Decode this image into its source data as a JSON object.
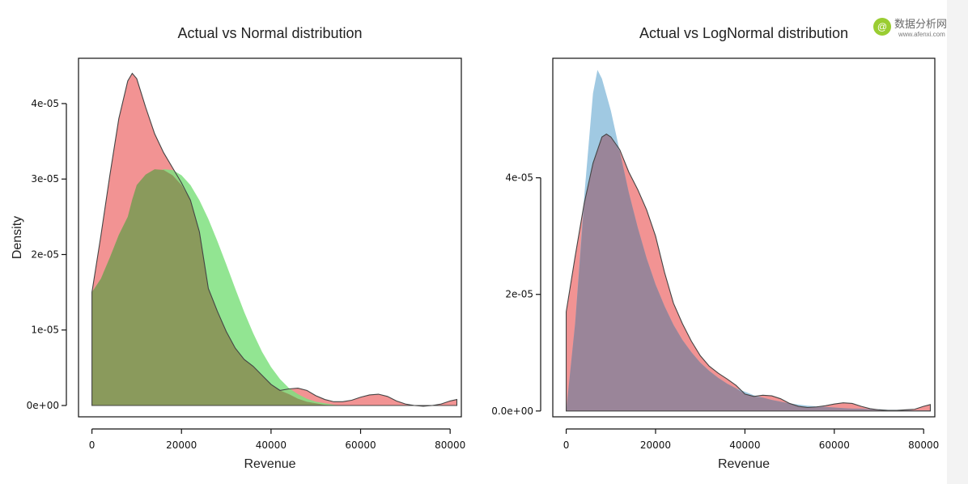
{
  "watermark": {
    "cn": "数据分析网",
    "en": "www.afenxi.com"
  },
  "chart_data": [
    {
      "type": "area",
      "title": "Actual vs Normal distribution",
      "xlabel": "Revenue",
      "ylabel": "Density",
      "xlim": [
        -3000,
        82500
      ],
      "ylim": [
        -1.5e-06,
        4.6e-05
      ],
      "x_ticks": [
        0,
        20000,
        40000,
        60000,
        80000
      ],
      "x_tick_labels": [
        "0",
        "20000",
        "40000",
        "60000",
        "80000"
      ],
      "y_ticks": [
        0,
        1e-05,
        2e-05,
        3e-05,
        4e-05
      ],
      "y_tick_labels": [
        "0e+00",
        "1e-05",
        "2e-05",
        "3e-05",
        "4e-05"
      ],
      "grid": false,
      "series": [
        {
          "name": "Actual",
          "color": "#f08080",
          "points": [
            [
              0,
              1.5e-05
            ],
            [
              2000,
              2.25e-05
            ],
            [
              4000,
              3.05e-05
            ],
            [
              6000,
              3.8e-05
            ],
            [
              8000,
              4.3e-05
            ],
            [
              9000,
              4.4e-05
            ],
            [
              10000,
              4.33e-05
            ],
            [
              12000,
              3.95e-05
            ],
            [
              14000,
              3.6e-05
            ],
            [
              16000,
              3.35e-05
            ],
            [
              18000,
              3.15e-05
            ],
            [
              20000,
              2.95e-05
            ],
            [
              22000,
              2.72e-05
            ],
            [
              24000,
              2.3e-05
            ],
            [
              26000,
              1.55e-05
            ],
            [
              28000,
              1.25e-05
            ],
            [
              30000,
              9.8e-06
            ],
            [
              32000,
              7.6e-06
            ],
            [
              34000,
              6.1e-06
            ],
            [
              36000,
              5.2e-06
            ],
            [
              38000,
              4e-06
            ],
            [
              40000,
              2.8e-06
            ],
            [
              42000,
              2e-06
            ],
            [
              44000,
              2.2e-06
            ],
            [
              46000,
              2.3e-06
            ],
            [
              48000,
              2e-06
            ],
            [
              50000,
              1.3e-06
            ],
            [
              52000,
              8e-07
            ],
            [
              54000,
              5e-07
            ],
            [
              56000,
              5e-07
            ],
            [
              58000,
              7e-07
            ],
            [
              60000,
              1.1e-06
            ],
            [
              62000,
              1.4e-06
            ],
            [
              64000,
              1.5e-06
            ],
            [
              66000,
              1.2e-06
            ],
            [
              68000,
              6e-07
            ],
            [
              70000,
              2e-07
            ],
            [
              72000,
              0
            ],
            [
              74000,
              -1e-07
            ],
            [
              76000,
              0
            ],
            [
              78000,
              2e-07
            ],
            [
              80000,
              6e-07
            ],
            [
              81500,
              8e-07
            ]
          ]
        },
        {
          "name": "Normal",
          "color": "#7fe07f",
          "points": [
            [
              0,
              1.5e-05
            ],
            [
              2000,
              1.68e-05
            ],
            [
              4000,
              1.96e-05
            ],
            [
              6000,
              2.26e-05
            ],
            [
              8000,
              2.5e-05
            ],
            [
              10000,
              2.73e-05
            ],
            [
              12000,
              2.92e-05
            ],
            [
              14000,
              3.06e-05
            ],
            [
              16000,
              3.13e-05
            ],
            [
              18000,
              3.12e-05
            ],
            [
              20000,
              3.05e-05
            ],
            [
              22000,
              2.92e-05
            ],
            [
              24000,
              2.72e-05
            ],
            [
              26000,
              2.47e-05
            ],
            [
              28000,
              2.18e-05
            ],
            [
              30000,
              1.87e-05
            ],
            [
              32000,
              1.55e-05
            ],
            [
              34000,
              1.24e-05
            ],
            [
              36000,
              9.6e-06
            ],
            [
              38000,
              7.1e-06
            ],
            [
              40000,
              5.1e-06
            ],
            [
              42000,
              3.5e-06
            ],
            [
              44000,
              2.3e-06
            ],
            [
              46000,
              1.5e-06
            ],
            [
              48000,
              9e-07
            ],
            [
              50000,
              5e-07
            ],
            [
              52000,
              3e-07
            ],
            [
              54000,
              1e-07
            ],
            [
              56000,
              0
            ],
            [
              58000,
              0
            ],
            [
              60000,
              0
            ],
            [
              62000,
              0
            ],
            [
              64000,
              0
            ],
            [
              66000,
              0
            ],
            [
              68000,
              0
            ],
            [
              70000,
              0
            ],
            [
              72000,
              0
            ],
            [
              74000,
              0
            ],
            [
              76000,
              0
            ],
            [
              78000,
              0
            ],
            [
              80000,
              0
            ],
            [
              81500,
              0
            ]
          ]
        }
      ],
      "overlap_color": "#8a9a5c",
      "outline_series": "Actual"
    },
    {
      "type": "area",
      "title": "Actual vs LogNormal distribution",
      "xlabel": "Revenue",
      "ylabel": "",
      "xlim": [
        -3000,
        82500
      ],
      "ylim": [
        -1e-06,
        6.05e-05
      ],
      "x_ticks": [
        0,
        20000,
        40000,
        60000,
        80000
      ],
      "x_tick_labels": [
        "0",
        "20000",
        "40000",
        "60000",
        "80000"
      ],
      "y_ticks": [
        0,
        2e-05,
        4e-05
      ],
      "y_tick_labels": [
        "0.0e+00",
        "2e-05",
        "4e-05"
      ],
      "grid": false,
      "series": [
        {
          "name": "Actual",
          "color": "#f08080",
          "points": [
            [
              0,
              1.7e-05
            ],
            [
              2000,
              2.65e-05
            ],
            [
              4000,
              3.55e-05
            ],
            [
              6000,
              4.25e-05
            ],
            [
              8000,
              4.7e-05
            ],
            [
              9000,
              4.75e-05
            ],
            [
              10000,
              4.7e-05
            ],
            [
              12000,
              4.48e-05
            ],
            [
              14000,
              4.1e-05
            ],
            [
              16000,
              3.8e-05
            ],
            [
              18000,
              3.45e-05
            ],
            [
              20000,
              3e-05
            ],
            [
              22000,
              2.38e-05
            ],
            [
              24000,
              1.85e-05
            ],
            [
              26000,
              1.5e-05
            ],
            [
              28000,
              1.2e-05
            ],
            [
              30000,
              9.5e-06
            ],
            [
              32000,
              7.7e-06
            ],
            [
              34000,
              6.5e-06
            ],
            [
              36000,
              5.5e-06
            ],
            [
              38000,
              4.4e-06
            ],
            [
              40000,
              2.9e-06
            ],
            [
              42000,
              2.5e-06
            ],
            [
              44000,
              2.7e-06
            ],
            [
              46000,
              2.6e-06
            ],
            [
              48000,
              2.1e-06
            ],
            [
              50000,
              1.3e-06
            ],
            [
              52000,
              8e-07
            ],
            [
              54000,
              6e-07
            ],
            [
              56000,
              7e-07
            ],
            [
              58000,
              9e-07
            ],
            [
              60000,
              1.2e-06
            ],
            [
              62000,
              1.4e-06
            ],
            [
              64000,
              1.3e-06
            ],
            [
              66000,
              8e-07
            ],
            [
              68000,
              4e-07
            ],
            [
              70000,
              2e-07
            ],
            [
              72000,
              1e-07
            ],
            [
              74000,
              1e-07
            ],
            [
              76000,
              2e-07
            ],
            [
              78000,
              3e-07
            ],
            [
              80000,
              8e-07
            ],
            [
              81500,
              1.1e-06
            ]
          ]
        },
        {
          "name": "LogNormal",
          "color": "#8fc0dd",
          "points": [
            [
              0,
              0
            ],
            [
              2000,
              1.5e-05
            ],
            [
              4000,
              3.65e-05
            ],
            [
              6000,
              5.45e-05
            ],
            [
              7000,
              5.85e-05
            ],
            [
              8000,
              5.7e-05
            ],
            [
              10000,
              5.15e-05
            ],
            [
              12000,
              4.45e-05
            ],
            [
              14000,
              3.75e-05
            ],
            [
              16000,
              3.15e-05
            ],
            [
              18000,
              2.62e-05
            ],
            [
              20000,
              2.17e-05
            ],
            [
              22000,
              1.8e-05
            ],
            [
              24000,
              1.48e-05
            ],
            [
              26000,
              1.22e-05
            ],
            [
              28000,
              1.01e-05
            ],
            [
              30000,
              8.3e-06
            ],
            [
              32000,
              6.9e-06
            ],
            [
              34000,
              5.7e-06
            ],
            [
              36000,
              4.7e-06
            ],
            [
              38000,
              3.9e-06
            ],
            [
              40000,
              3.3e-06
            ],
            [
              42000,
              2.7e-06
            ],
            [
              44000,
              2.3e-06
            ],
            [
              46000,
              1.9e-06
            ],
            [
              48000,
              1.6e-06
            ],
            [
              50000,
              1.3e-06
            ],
            [
              52000,
              1.1e-06
            ],
            [
              54000,
              9e-07
            ],
            [
              56000,
              8e-07
            ],
            [
              58000,
              7e-07
            ],
            [
              60000,
              6e-07
            ],
            [
              62000,
              5e-07
            ],
            [
              64000,
              4e-07
            ],
            [
              66000,
              4e-07
            ],
            [
              68000,
              3e-07
            ],
            [
              70000,
              3e-07
            ],
            [
              72000,
              2e-07
            ],
            [
              74000,
              2e-07
            ],
            [
              76000,
              2e-07
            ],
            [
              78000,
              1e-07
            ],
            [
              80000,
              1e-07
            ],
            [
              81500,
              1e-07
            ]
          ]
        }
      ],
      "overlap_color": "#9a8599",
      "outline_series": "Actual"
    }
  ]
}
